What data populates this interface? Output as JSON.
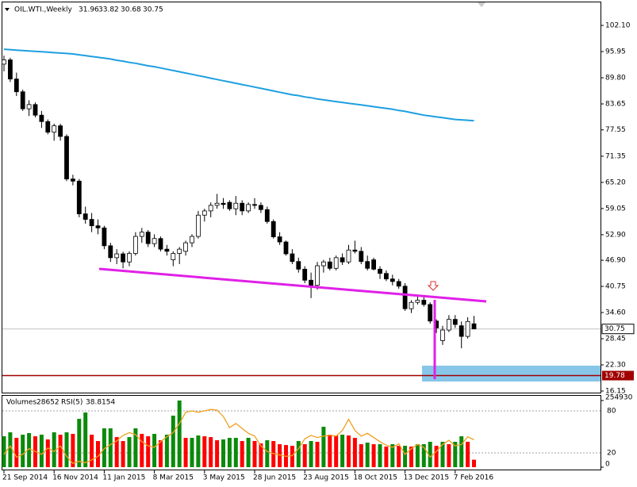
{
  "chart_data": {
    "type": "candlestick",
    "title": "OIL.WTI.,Weekly",
    "categories": [
      "21 Sep 2014",
      null,
      null,
      null,
      null,
      null,
      null,
      null,
      "16 Nov 2014",
      null,
      null,
      null,
      null,
      null,
      null,
      null,
      "11 Jan 2015",
      null,
      null,
      null,
      null,
      null,
      null,
      null,
      "8 Mar 2015",
      null,
      null,
      null,
      null,
      null,
      null,
      null,
      "3 May 2015",
      null,
      null,
      null,
      null,
      null,
      null,
      null,
      "28 Jun 2015",
      null,
      null,
      null,
      null,
      null,
      null,
      null,
      "23 Aug 2015",
      null,
      null,
      null,
      null,
      null,
      null,
      null,
      "18 Oct 2015",
      null,
      null,
      null,
      null,
      null,
      null,
      null,
      "13 Dec 2015",
      null,
      null,
      null,
      null,
      null,
      null,
      null,
      "7 Feb 2016",
      null,
      null,
      null
    ],
    "open": [
      93.0,
      94.0,
      89.5,
      86.5,
      82.5,
      83.5,
      81.0,
      79.5,
      77.0,
      78.5,
      76.0,
      66.0,
      65.5,
      57.8,
      56.5,
      55.0,
      54.5,
      50.3,
      47.5,
      48.4,
      46.5,
      48.5,
      52.5,
      53.5,
      50.8,
      52.0,
      49.5,
      47.0,
      48.5,
      49.0,
      51.0,
      52.5,
      57.5,
      58.5,
      59.8,
      60.3,
      60.5,
      59.0,
      60.3,
      58.5,
      60.0,
      59.8,
      58.8,
      56.0,
      52.4,
      51.2,
      48.4,
      46.6,
      44.8,
      42.2,
      41.0,
      45.6,
      46.5,
      45.0,
      47.5,
      46.5,
      49.3,
      49.0,
      46.6,
      47.0,
      44.8,
      43.8,
      42.5,
      41.9,
      40.8,
      35.5,
      37.0,
      37.5,
      36.5,
      32.6,
      28.0,
      30.5,
      33.0,
      31.5,
      29.0,
      31.96
    ],
    "high": [
      95.0,
      94.5,
      91.0,
      87.0,
      84.5,
      84.0,
      82.0,
      80.0,
      79.0,
      79.0,
      76.5,
      67.0,
      66.0,
      59.5,
      58.0,
      56.5,
      55.0,
      51.0,
      49.5,
      48.9,
      49.0,
      53.5,
      54.5,
      54.0,
      53.0,
      52.5,
      50.5,
      49.0,
      50.0,
      51.5,
      53.0,
      58.5,
      59.0,
      60.5,
      62.5,
      61.5,
      61.0,
      62.0,
      61.0,
      60.5,
      61.5,
      60.5,
      59.5,
      56.5,
      53.5,
      51.5,
      49.5,
      47.5,
      45.5,
      44.0,
      46.5,
      47.0,
      47.5,
      48.0,
      48.5,
      50.5,
      51.5,
      50.0,
      48.0,
      47.5,
      45.5,
      44.5,
      43.5,
      42.5,
      41.5,
      37.5,
      38.5,
      38.5,
      37.0,
      33.0,
      31.5,
      34.0,
      34.0,
      32.5,
      33.5,
      33.82
    ],
    "low": [
      91.3,
      88.8,
      85.5,
      82.0,
      80.8,
      80.5,
      78.0,
      76.5,
      75.0,
      75.0,
      65.5,
      64.5,
      57.0,
      55.5,
      53.5,
      53.0,
      49.5,
      46.5,
      46.0,
      45.0,
      45.5,
      48.0,
      51.0,
      50.0,
      50.0,
      49.0,
      48.0,
      45.5,
      46.0,
      48.0,
      50.0,
      52.0,
      56.0,
      57.0,
      59.0,
      59.0,
      58.5,
      57.5,
      57.5,
      58.0,
      59.0,
      58.0,
      55.5,
      52.0,
      50.5,
      48.0,
      46.0,
      44.0,
      41.5,
      38.0,
      40.0,
      44.0,
      44.5,
      44.5,
      45.8,
      46.0,
      48.5,
      46.0,
      44.5,
      44.5,
      42.5,
      42.0,
      41.0,
      40.2,
      35.0,
      34.5,
      36.5,
      36.0,
      32.0,
      29.8,
      27.0,
      30.0,
      31.0,
      26.2,
      28.5,
      30.68
    ],
    "close": [
      94.0,
      89.5,
      86.5,
      82.5,
      83.5,
      81.0,
      79.5,
      77.0,
      78.5,
      76.0,
      66.0,
      65.5,
      57.8,
      56.5,
      55.0,
      54.5,
      50.3,
      47.5,
      48.4,
      46.5,
      48.5,
      52.5,
      53.5,
      50.8,
      52.0,
      49.5,
      49.0,
      48.5,
      49.5,
      51.0,
      52.5,
      57.5,
      58.5,
      59.8,
      60.3,
      60.0,
      59.0,
      60.3,
      58.5,
      60.0,
      59.8,
      58.8,
      56.0,
      52.4,
      51.2,
      48.4,
      46.6,
      44.8,
      42.2,
      41.0,
      45.6,
      46.5,
      45.0,
      47.5,
      46.5,
      49.3,
      49.0,
      46.6,
      45.0,
      44.8,
      43.8,
      42.5,
      41.9,
      40.8,
      35.5,
      37.0,
      37.5,
      36.5,
      32.6,
      31.0,
      30.5,
      33.0,
      31.8,
      29.0,
      32.5,
      30.75
    ],
    "up_color": "#ffffff",
    "down_color": "#000000",
    "ylim": [
      15.78,
      107.33
    ],
    "yticks": [
      {
        "value": 102.1,
        "label": "102.10"
      },
      {
        "value": 95.95,
        "label": "95.95"
      },
      {
        "value": 89.8,
        "label": "89.80"
      },
      {
        "value": 83.65,
        "label": "83.65"
      },
      {
        "value": 77.55,
        "label": "77.55"
      },
      {
        "value": 71.35,
        "label": "71.35"
      },
      {
        "value": 65.2,
        "label": "65.20"
      },
      {
        "value": 59.05,
        "label": "59.05"
      },
      {
        "value": 52.9,
        "label": "52.90"
      },
      {
        "value": 46.9,
        "label": "46.90"
      },
      {
        "value": 40.75,
        "label": "40.75"
      },
      {
        "value": 34.6,
        "label": "34.60"
      },
      {
        "value": 28.45,
        "label": "28.45"
      },
      {
        "value": 22.3,
        "label": "22.30"
      },
      {
        "value": 16.15,
        "label": "16.15"
      }
    ],
    "ma": {
      "color": "#1e9fe0",
      "values": [
        96.5,
        96.4,
        96.3,
        96.2,
        96.1,
        96.0,
        95.9,
        95.8,
        95.7,
        95.6,
        95.5,
        95.4,
        95.2,
        95.0,
        94.8,
        94.6,
        94.4,
        94.2,
        93.9,
        93.7,
        93.4,
        93.2,
        92.9,
        92.6,
        92.4,
        92.1,
        91.8,
        91.5,
        91.2,
        90.9,
        90.6,
        90.3,
        90.0,
        89.7,
        89.4,
        89.1,
        88.8,
        88.5,
        88.2,
        87.9,
        87.6,
        87.3,
        87.0,
        86.7,
        86.4,
        86.1,
        85.8,
        85.6,
        85.3,
        85.1,
        84.8,
        84.6,
        84.4,
        84.2,
        84.0,
        83.8,
        83.6,
        83.4,
        83.2,
        83.0,
        82.8,
        82.6,
        82.4,
        82.1,
        81.9,
        81.6,
        81.3,
        81.0,
        80.8,
        80.6,
        80.4,
        80.2,
        80.0,
        79.9,
        79.8,
        79.7
      ]
    },
    "current_price": 30.75,
    "level_line": 19.78,
    "level_color": "#a00000",
    "volumes": {
      "name": "Volumes",
      "up_color": "#0b8a0b",
      "down_color": "#ff0000",
      "ylim": [
        0,
        273000
      ],
      "yticks": [
        0,
        254930
      ],
      "values": [
        118200,
        133300,
        112100,
        124200,
        130300,
        118200,
        124200,
        106100,
        133300,
        124200,
        133300,
        127300,
        184800,
        209100,
        124200,
        100000,
        148500,
        148500,
        115100,
        100000,
        115100,
        148500,
        127300,
        118200,
        127300,
        103000,
        124200,
        197000,
        254930,
        112100,
        112100,
        121200,
        118200,
        115100,
        103000,
        106100,
        112100,
        112100,
        100000,
        112100,
        100000,
        90900,
        103000,
        100000,
        87900,
        84800,
        81800,
        100000,
        87900,
        100000,
        97000,
        154500,
        124200,
        121200,
        124200,
        121200,
        112100,
        87900,
        93900,
        87900,
        87900,
        78800,
        87900,
        81800,
        81800,
        78800,
        87900,
        87900,
        97000,
        81800,
        97000,
        87900,
        97000,
        118200,
        97000,
        28652
      ]
    },
    "rsi": {
      "name": "RSI(5)",
      "color": "#f0a020",
      "ylim": [
        -0.38,
        101.5
      ],
      "yticks": [
        20,
        80
      ],
      "values": [
        18,
        30,
        14,
        18,
        26,
        22,
        18,
        27,
        22,
        30,
        15,
        5,
        8,
        6,
        10,
        15,
        26,
        32,
        37,
        45,
        49,
        46,
        36,
        30,
        28,
        36,
        43,
        49,
        62,
        78,
        80,
        78,
        80,
        82,
        81,
        72,
        56,
        62,
        55,
        48,
        44,
        30,
        22,
        19,
        17,
        15,
        16,
        26,
        40,
        45,
        42,
        44,
        45,
        44,
        52,
        68,
        52,
        44,
        48,
        42,
        36,
        31,
        28,
        33,
        18,
        26,
        32,
        28,
        14,
        22,
        32,
        38,
        30,
        32,
        43,
        38.8154
      ]
    }
  }
}
